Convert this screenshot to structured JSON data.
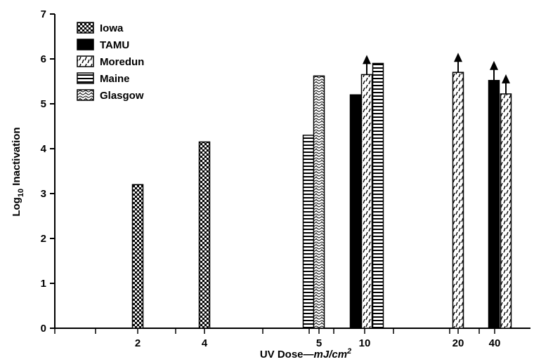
{
  "chart_data": {
    "type": "bar",
    "xlabel_main": "UV Dose—",
    "xlabel_unit": "mJ/cm",
    "xlabel_unit_sup": "2",
    "ylabel_pre": "Log",
    "ylabel_sub": "10",
    "ylabel_post": " Inactivation",
    "ylim": [
      0,
      7
    ],
    "yticks": [
      0,
      1,
      2,
      3,
      4,
      5,
      6,
      7
    ],
    "categories": [
      "2",
      "4",
      "5",
      "10",
      "20",
      "40"
    ],
    "legend_position": "top-left",
    "series": [
      {
        "name": "Iowa",
        "pattern": "dots-dense"
      },
      {
        "name": "TAMU",
        "pattern": "solid"
      },
      {
        "name": "Moredun",
        "pattern": "dashes-diagonal"
      },
      {
        "name": "Maine",
        "pattern": "horizontal-lines"
      },
      {
        "name": "Glasgow",
        "pattern": "squiggles"
      }
    ],
    "bars": [
      {
        "category": "2",
        "series": "Iowa",
        "value": 3.2,
        "lower_bound": false
      },
      {
        "category": "4",
        "series": "Iowa",
        "value": 4.15,
        "lower_bound": false
      },
      {
        "category": "5",
        "series": "Maine",
        "value": 4.3,
        "lower_bound": false
      },
      {
        "category": "5",
        "series": "Glasgow",
        "value": 5.62,
        "lower_bound": false
      },
      {
        "category": "10",
        "series": "TAMU",
        "value": 5.2,
        "lower_bound": false
      },
      {
        "category": "10",
        "series": "Moredun",
        "value": 5.65,
        "lower_bound": true
      },
      {
        "category": "10",
        "series": "Maine",
        "value": 5.9,
        "lower_bound": false
      },
      {
        "category": "20",
        "series": "Moredun",
        "value": 5.7,
        "lower_bound": true
      },
      {
        "category": "40",
        "series": "TAMU",
        "value": 5.52,
        "lower_bound": true
      },
      {
        "category": "40",
        "series": "Moredun",
        "value": 5.22,
        "lower_bound": true
      }
    ]
  }
}
